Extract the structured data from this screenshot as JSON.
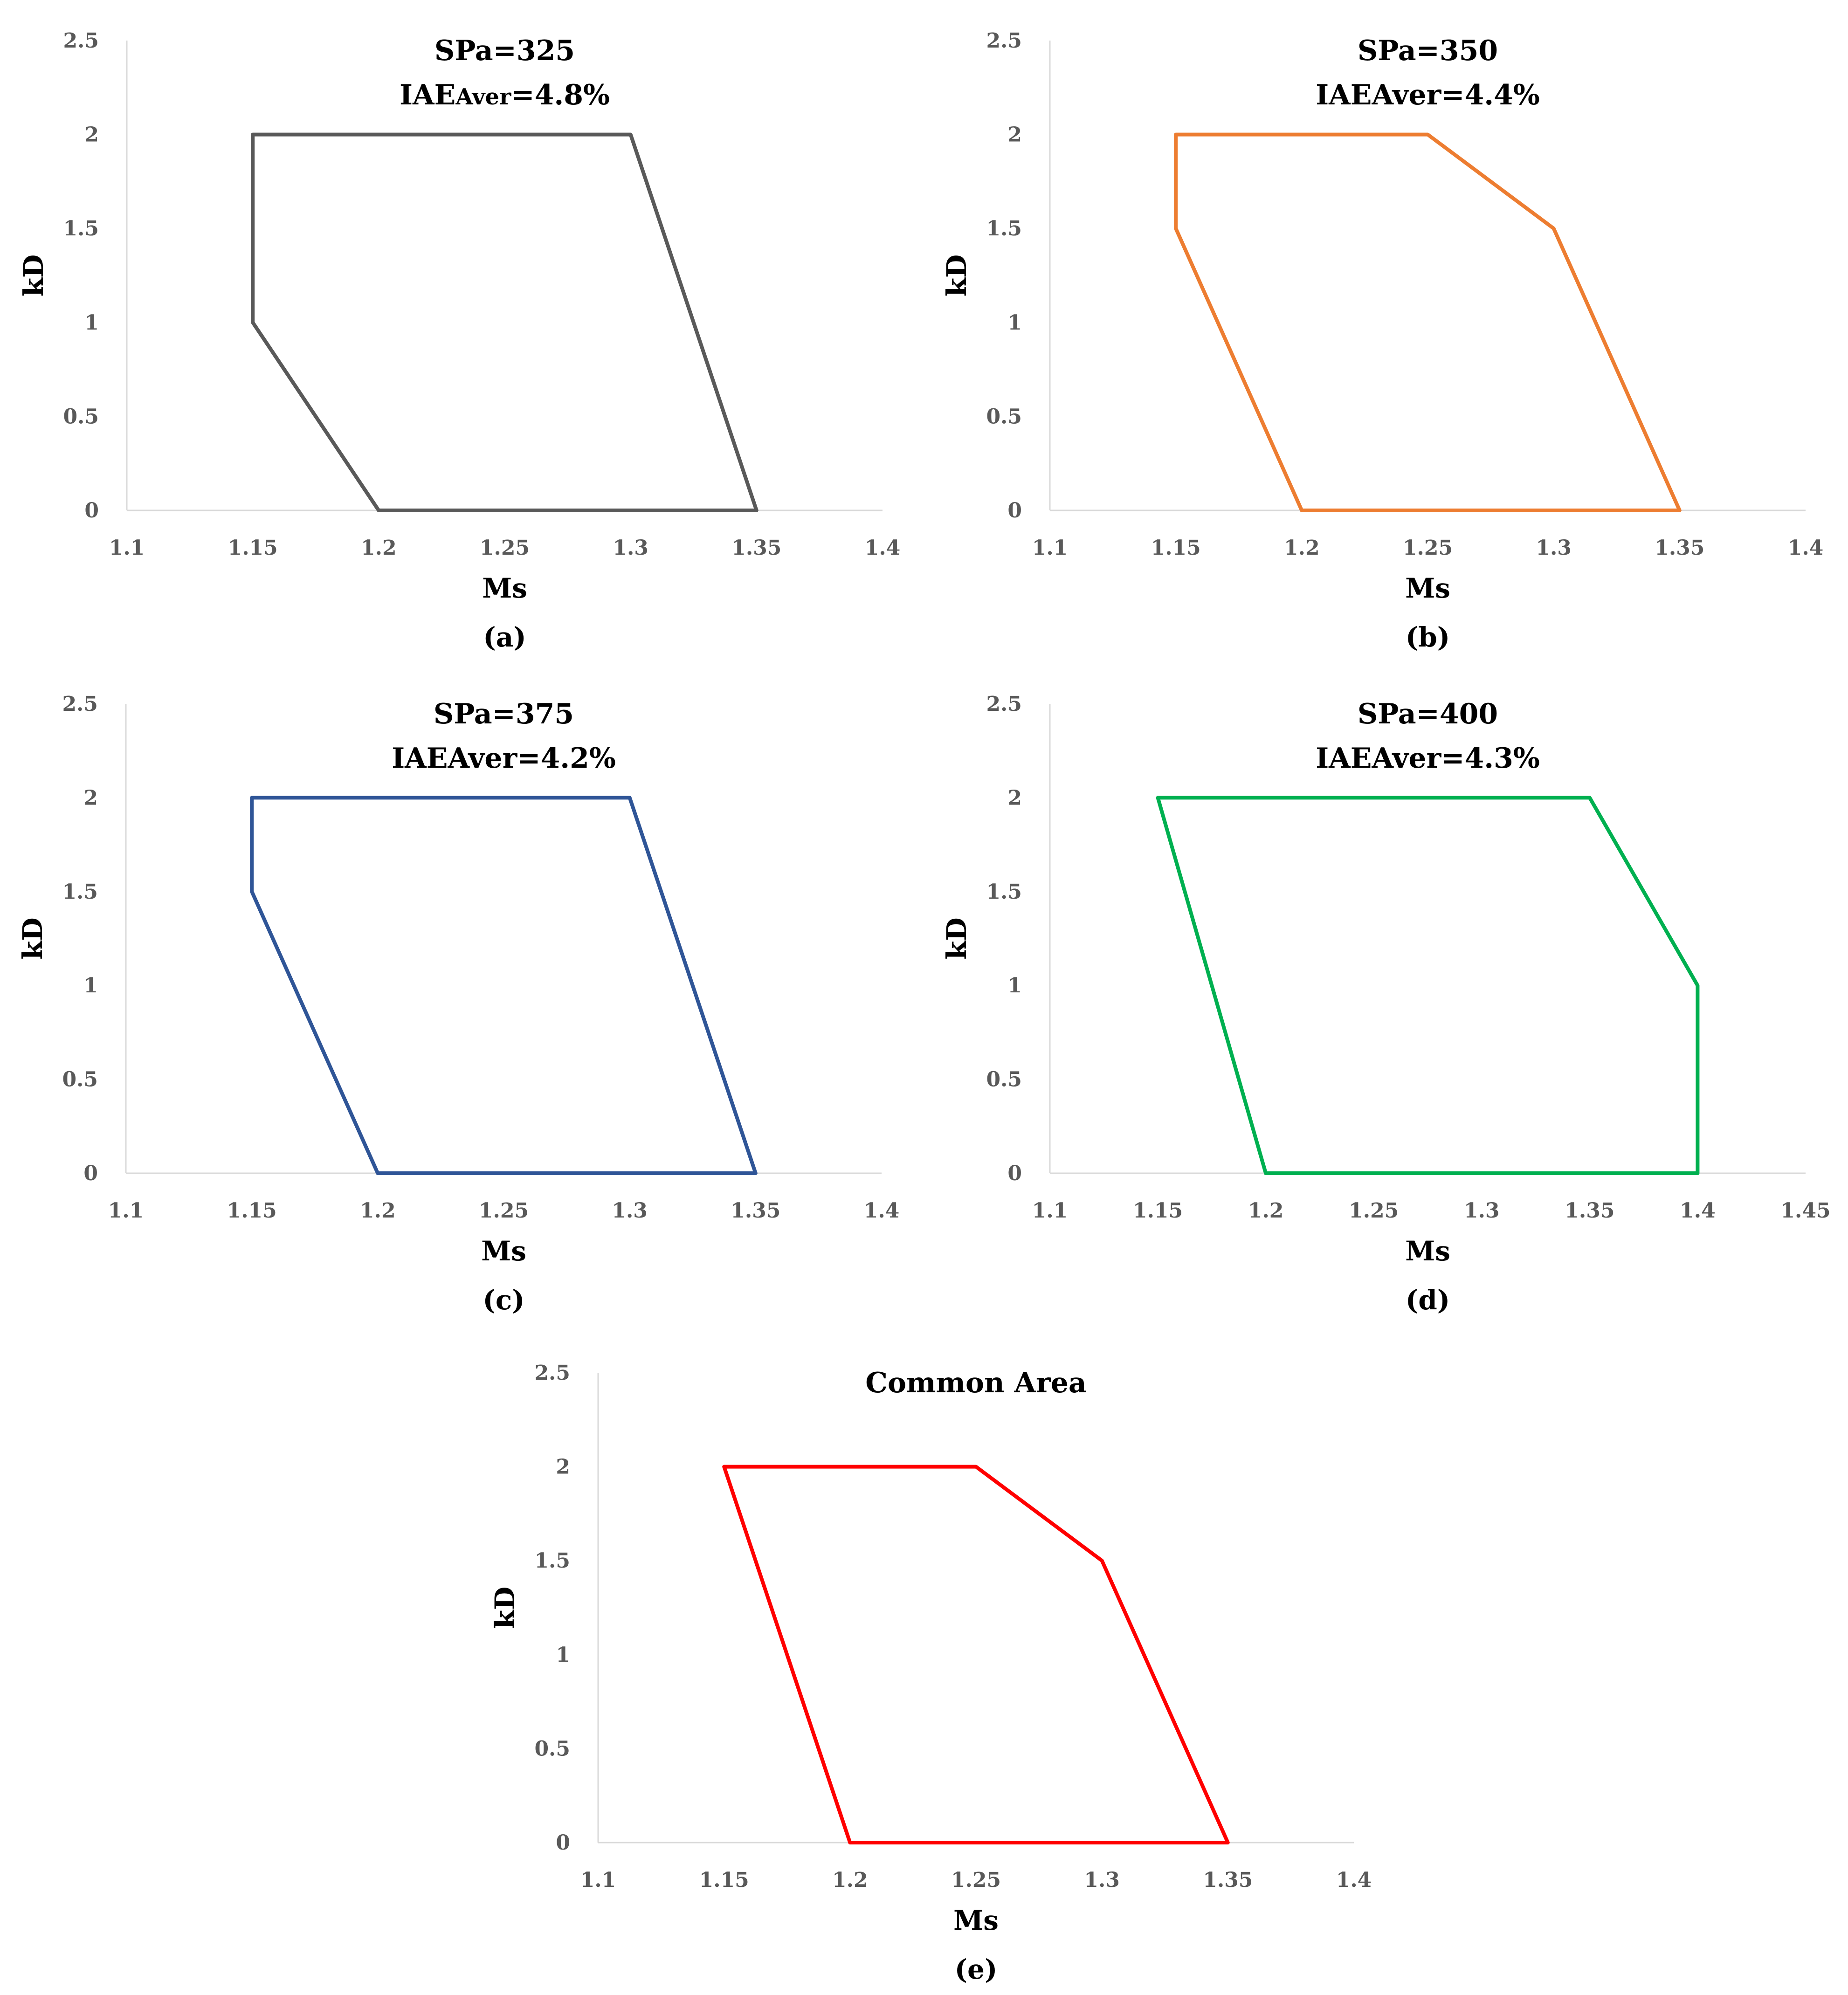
{
  "figure_title": "",
  "chart_data": [
    {
      "type": "line",
      "panel": "(a)",
      "title_line1": "SPa=325",
      "title_line2": "IAEAver=4.8%",
      "title_line2_parts": [
        "IAE",
        "Aver",
        "=4.8%"
      ],
      "xlabel": "Ms",
      "ylabel": "kD",
      "xlim": [
        1.1,
        1.4
      ],
      "ylim": [
        0,
        2.5
      ],
      "xticks": [
        "1.1",
        "1.15",
        "1.2",
        "1.25",
        "1.3",
        "1.35",
        "1.4"
      ],
      "yticks": [
        "0",
        "0.5",
        "1",
        "1.5",
        "2",
        "2.5"
      ],
      "color": "#595959",
      "series": [
        {
          "name": "SPa=325",
          "points": [
            [
              1.15,
              1
            ],
            [
              1.15,
              2
            ],
            [
              1.3,
              2
            ],
            [
              1.35,
              0
            ],
            [
              1.2,
              0
            ],
            [
              1.15,
              1
            ]
          ]
        }
      ]
    },
    {
      "type": "line",
      "panel": "(b)",
      "title_line1": "SPa=350",
      "title_line2": "IAEAver=4.4%",
      "title_line2_parts": [
        "IAEAver=4.4%"
      ],
      "xlabel": "Ms",
      "ylabel": "kD",
      "xlim": [
        1.1,
        1.4
      ],
      "ylim": [
        0,
        2.5
      ],
      "xticks": [
        "1.1",
        "1.15",
        "1.2",
        "1.25",
        "1.3",
        "1.35",
        "1.4"
      ],
      "yticks": [
        "0",
        "0.5",
        "1",
        "1.5",
        "2",
        "2.5"
      ],
      "color": "#ED7D31",
      "series": [
        {
          "name": "SPa=350",
          "points": [
            [
              1.15,
              1.5
            ],
            [
              1.15,
              2
            ],
            [
              1.25,
              2
            ],
            [
              1.3,
              1.5
            ],
            [
              1.35,
              0
            ],
            [
              1.2,
              0
            ],
            [
              1.15,
              1.5
            ]
          ]
        }
      ]
    },
    {
      "type": "line",
      "panel": "(c)",
      "title_line1": "SPa=375",
      "title_line2": "IAEAver=4.2%",
      "title_line2_parts": [
        "IAEAver=4.2%"
      ],
      "xlabel": "Ms",
      "ylabel": "kD",
      "xlim": [
        1.1,
        1.4
      ],
      "ylim": [
        0,
        2.5
      ],
      "xticks": [
        "1.1",
        "1.15",
        "1.2",
        "1.25",
        "1.3",
        "1.35",
        "1.4"
      ],
      "yticks": [
        "0",
        "0.5",
        "1",
        "1.5",
        "2",
        "2.5"
      ],
      "color": "#2F5597",
      "series": [
        {
          "name": "SPa=375",
          "points": [
            [
              1.15,
              1.5
            ],
            [
              1.15,
              2
            ],
            [
              1.3,
              2
            ],
            [
              1.35,
              0
            ],
            [
              1.2,
              0
            ],
            [
              1.15,
              1.5
            ]
          ]
        }
      ]
    },
    {
      "type": "line",
      "panel": "(d)",
      "title_line1": "SPa=400",
      "title_line2": "IAEAver=4.3%",
      "title_line2_parts": [
        "IAEAver=4.3%"
      ],
      "xlabel": "Ms",
      "ylabel": "kD",
      "xlim": [
        1.1,
        1.45
      ],
      "ylim": [
        0,
        2.5
      ],
      "xticks": [
        "1.1",
        "1.15",
        "1.2",
        "1.25",
        "1.3",
        "1.35",
        "1.4",
        "1.45"
      ],
      "yticks": [
        "0",
        "0.5",
        "1",
        "1.5",
        "2",
        "2.5"
      ],
      "color": "#00B050",
      "series": [
        {
          "name": "SPa=400",
          "points": [
            [
              1.15,
              2
            ],
            [
              1.35,
              2
            ],
            [
              1.4,
              1
            ],
            [
              1.4,
              0
            ],
            [
              1.2,
              0
            ],
            [
              1.15,
              2
            ]
          ]
        }
      ]
    },
    {
      "type": "line",
      "panel": "(e)",
      "title_line1": "Common Area",
      "title_line2": "",
      "title_line2_parts": [],
      "xlabel": "Ms",
      "ylabel": "kD",
      "xlim": [
        1.1,
        1.4
      ],
      "ylim": [
        0,
        2.5
      ],
      "xticks": [
        "1.1",
        "1.15",
        "1.2",
        "1.25",
        "1.3",
        "1.35",
        "1.4"
      ],
      "yticks": [
        "0",
        "0.5",
        "1",
        "1.5",
        "2",
        "2.5"
      ],
      "color": "#FF0000",
      "series": [
        {
          "name": "Common Area",
          "points": [
            [
              1.15,
              2
            ],
            [
              1.25,
              2
            ],
            [
              1.3,
              1.5
            ],
            [
              1.35,
              0
            ],
            [
              1.2,
              0
            ],
            [
              1.15,
              2
            ]
          ]
        }
      ]
    }
  ]
}
